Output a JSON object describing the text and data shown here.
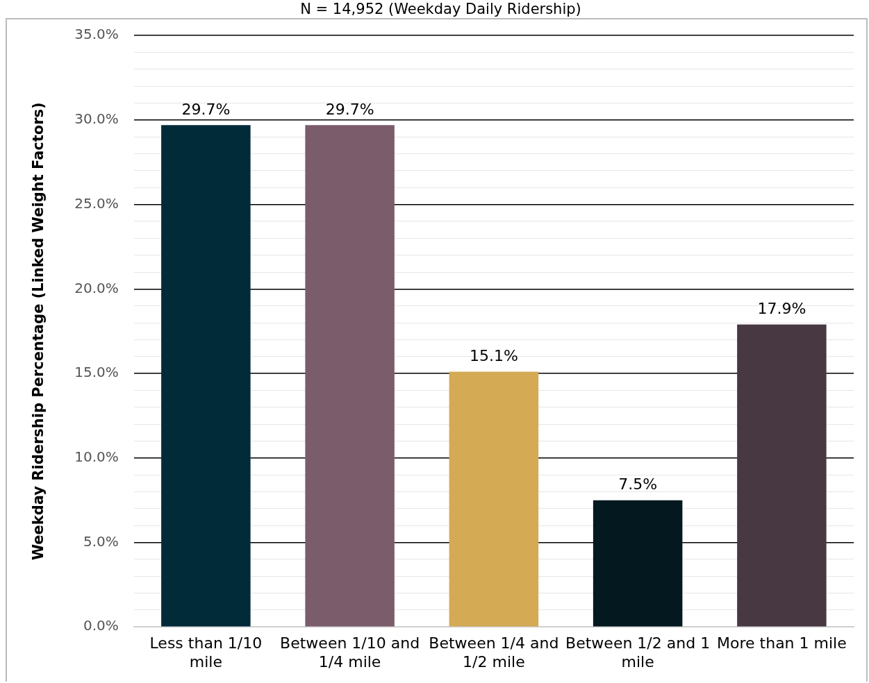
{
  "chart_data": {
    "type": "bar",
    "title": "N = 14,952 (Weekday Daily Ridership)",
    "ylabel": "Weekday Ridership Percentage (Linked Weight Factors)",
    "categories": [
      "Less than 1/10 mile",
      "Between 1/10 and 1/4 mile",
      "Between 1/4 and 1/2 mile",
      "Between 1/2 and 1 mile",
      "More than 1 mile"
    ],
    "values": [
      29.7,
      29.7,
      15.1,
      7.5,
      17.9
    ],
    "colors": [
      "#022b3a",
      "#7a5c6a",
      "#d4aa55",
      "#03181f",
      "#483842"
    ],
    "value_labels": [
      "29.7%",
      "29.7%",
      "15.1%",
      "7.5%",
      "17.9%"
    ],
    "ylim": [
      0,
      35
    ],
    "yticks": [
      {
        "value": 0,
        "label": "0.0%"
      },
      {
        "value": 1,
        "label": null
      },
      {
        "value": 2,
        "label": null
      },
      {
        "value": 3,
        "label": null
      },
      {
        "value": 4,
        "label": null
      },
      {
        "value": 5,
        "label": "5.0%"
      },
      {
        "value": 6,
        "label": null
      },
      {
        "value": 7,
        "label": null
      },
      {
        "value": 8,
        "label": null
      },
      {
        "value": 9,
        "label": null
      },
      {
        "value": 10,
        "label": "10.0%"
      },
      {
        "value": 11,
        "label": null
      },
      {
        "value": 12,
        "label": null
      },
      {
        "value": 13,
        "label": null
      },
      {
        "value": 14,
        "label": null
      },
      {
        "value": 15,
        "label": "15.0%"
      },
      {
        "value": 16,
        "label": null
      },
      {
        "value": 17,
        "label": null
      },
      {
        "value": 18,
        "label": null
      },
      {
        "value": 19,
        "label": null
      },
      {
        "value": 20,
        "label": "20.0%"
      },
      {
        "value": 21,
        "label": null
      },
      {
        "value": 22,
        "label": null
      },
      {
        "value": 23,
        "label": null
      },
      {
        "value": 24,
        "label": null
      },
      {
        "value": 25,
        "label": "25.0%"
      },
      {
        "value": 26,
        "label": null
      },
      {
        "value": 27,
        "label": null
      },
      {
        "value": 28,
        "label": null
      },
      {
        "value": 29,
        "label": null
      },
      {
        "value": 30,
        "label": "30.0%"
      },
      {
        "value": 31,
        "label": null
      },
      {
        "value": 32,
        "label": null
      },
      {
        "value": 33,
        "label": null
      },
      {
        "value": 34,
        "label": null
      },
      {
        "value": 35,
        "label": "35.0%"
      }
    ],
    "grid": "y",
    "legend": false
  }
}
